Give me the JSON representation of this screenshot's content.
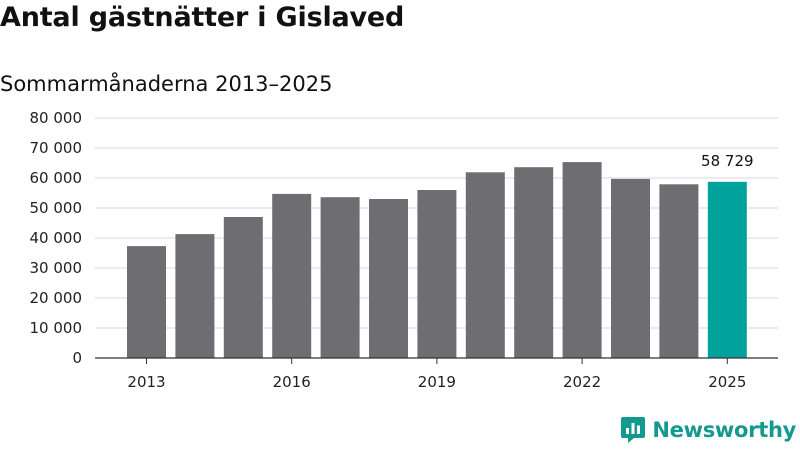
{
  "header": {
    "title": "Antal gästnätter i Gislaved",
    "subtitle": "Sommarmånaderna 2013–2025"
  },
  "brand": {
    "name": "Newsworthy",
    "color": "#14998f",
    "icon": "bar-chart-icon"
  },
  "colors": {
    "bar": "#6e6d72",
    "highlight": "#00a39b",
    "grid": "#d9d9d9",
    "axis": "#333333"
  },
  "chart_data": {
    "type": "bar",
    "categories": [
      "2013",
      "2014",
      "2015",
      "2016",
      "2017",
      "2018",
      "2019",
      "2020",
      "2021",
      "2022",
      "2023",
      "2024",
      "2025"
    ],
    "values": [
      37300,
      41300,
      47000,
      54700,
      53600,
      53000,
      56000,
      61900,
      63600,
      65300,
      59700,
      57900,
      58729
    ],
    "highlight_index": 12,
    "highlight_label": "58 729",
    "xticks": [
      "2013",
      "2016",
      "2019",
      "2022",
      "2025"
    ],
    "yticks": [
      "0",
      "10 000",
      "20 000",
      "30 000",
      "40 000",
      "50 000",
      "60 000",
      "70 000",
      "80 000"
    ],
    "ylim": [
      0,
      80000
    ],
    "grid": true,
    "legend": "none"
  }
}
